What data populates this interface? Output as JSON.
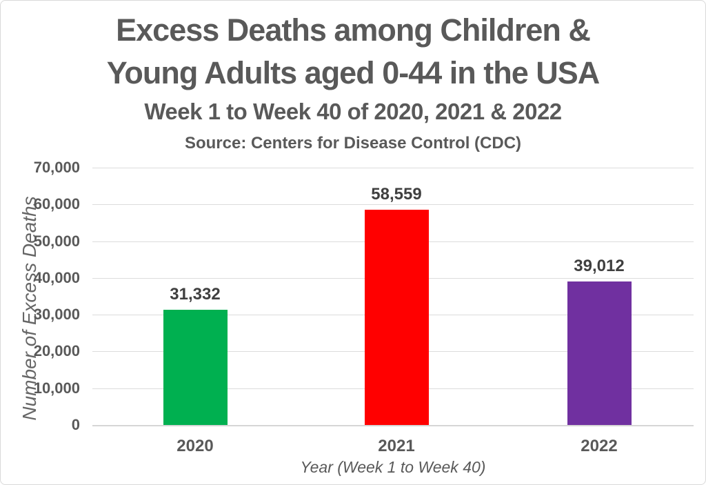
{
  "header": {
    "title_line1": "Excess Deaths among Children &",
    "title_line2": "Young Adults aged 0-44 in the USA",
    "subtitle": "Week 1 to Week 40 of 2020, 2021 & 2022",
    "source": "Source: Centers for Disease Control (CDC)"
  },
  "chart_data": {
    "type": "bar",
    "categories": [
      "2020",
      "2021",
      "2022"
    ],
    "values": [
      31332,
      58559,
      39012
    ],
    "value_labels": [
      "31,332",
      "58,559",
      "39,012"
    ],
    "bar_colors": [
      "#00B050",
      "#FF0000",
      "#7030A0"
    ],
    "title": "Excess Deaths among Children & Young Adults aged 0-44 in the USA",
    "xlabel": "Year (Week 1 to Week 40)",
    "ylabel": "Number of Excess Deaths",
    "ylim": [
      0,
      70000
    ],
    "ytick_step": 10000,
    "ytick_labels": [
      "0",
      "10,000",
      "20,000",
      "30,000",
      "40,000",
      "50,000",
      "60,000",
      "70,000"
    ],
    "grid": true,
    "legend": "none"
  },
  "colors": {
    "title_text": "#595959",
    "tick_label_text": "#595959",
    "value_label_text": "#3f3f3f",
    "axis_title_text": "#666666",
    "gridline": "#dcdcdc",
    "background": "#ffffff",
    "bar_2020": "#00B050",
    "bar_2021": "#FF0000",
    "bar_2022": "#7030A0"
  }
}
